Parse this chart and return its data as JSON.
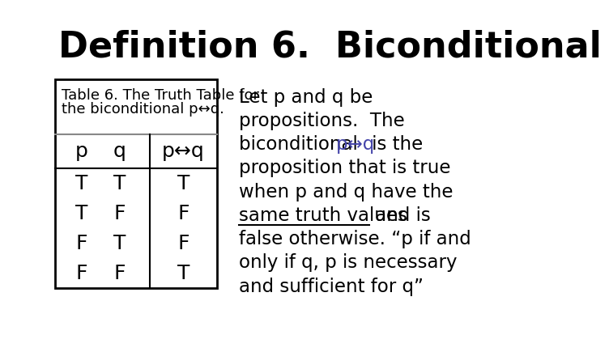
{
  "title": "Definition 6.  Biconditional",
  "title_fontsize": 32,
  "title_font": "DejaVu Sans",
  "title_color": "#000000",
  "bg_color": "#ffffff",
  "table_caption_line1": "Table 6. The Truth Table for",
  "table_caption_line2": "the biconditional p↔q.",
  "table_header_col1a": "p",
  "table_header_col1b": "q",
  "table_header_col2": "p↔q",
  "table_data": [
    [
      "T",
      "T",
      "T"
    ],
    [
      "T",
      "F",
      "F"
    ],
    [
      "F",
      "T",
      "F"
    ],
    [
      "F",
      "F",
      "T"
    ]
  ],
  "biconditional_color": "#4444aa",
  "table_border_color": "#000000",
  "table_bg": "#ffffff",
  "table_header_sep_color": "#888888",
  "font_size_table": 18,
  "font_size_right": 16.5,
  "caption_fontsize": 13,
  "right_line1": "Let p and q be",
  "right_line2": "propositions.  The",
  "right_line3a": "biconditional ",
  "right_line3b": "p↔q",
  "right_line3c": " is the",
  "right_line4": "proposition that is true",
  "right_line5": "when p and q have the",
  "right_line6a": "same truth values",
  "right_line6b": " and is",
  "right_line7": "false otherwise. “p if and",
  "right_line8": "only if q, p is necessary",
  "right_line9": "and sufficient for q”"
}
